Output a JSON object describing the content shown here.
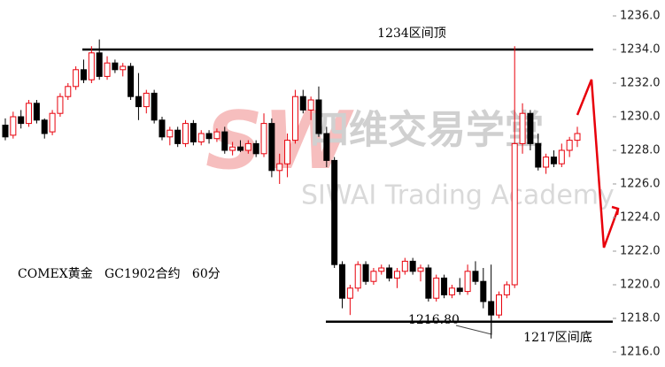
{
  "chart_data": {
    "type": "candlestick",
    "label": "COMEX黄金   GC1902合约   60分",
    "watermark": {
      "logo": "SW",
      "title": "四维交易学堂",
      "subtitle": "SIWAI Trading Academy"
    },
    "up_color": "#e8000b",
    "down_color": "#000000",
    "ylim": [
      1216,
      1236
    ],
    "yticks": [
      {
        "value": 1216,
        "label": "1216.0"
      },
      {
        "value": 1218,
        "label": "1218.0"
      },
      {
        "value": 1220,
        "label": "1220.0"
      },
      {
        "value": 1222,
        "label": "1222.0"
      },
      {
        "value": 1224,
        "label": "1224.0"
      },
      {
        "value": 1226,
        "label": "1226.0"
      },
      {
        "value": 1228,
        "label": "1228.0"
      },
      {
        "value": 1230,
        "label": "1230.0"
      },
      {
        "value": 1232,
        "label": "1232.0"
      },
      {
        "value": 1234,
        "label": "1234.0"
      },
      {
        "value": 1236,
        "label": "1236.0"
      }
    ],
    "levels": [
      {
        "label": "1234区间顶",
        "value": 1234
      },
      {
        "label": "1217区间底",
        "value": 1217.8
      }
    ],
    "low_annotation": {
      "label": "1216.80",
      "value": 1216.8
    },
    "open": [
      1229.5,
      1228.9,
      1230.0,
      1229.6,
      1230.8,
      1229.8,
      1229.1,
      1230.2,
      1231.2,
      1231.8,
      1232.8,
      1232.2,
      1233.8,
      1232.4,
      1233.2,
      1232.8,
      1233.0,
      1231.2,
      1230.6,
      1231.4,
      1229.8,
      1228.8,
      1229.2,
      1228.4,
      1229.6,
      1228.5,
      1229.0,
      1228.7,
      1229.1,
      1228.0,
      1228.2,
      1228.0,
      1228.4,
      1227.8,
      1229.6,
      1226.8,
      1227.2,
      1228.6,
      1231.2,
      1230.4,
      1231.0,
      1229.0,
      1227.4,
      1221.2,
      1219.2,
      1219.8,
      1221.2,
      1220.2,
      1220.8,
      1221.0,
      1220.4,
      1220.8,
      1221.4,
      1220.8,
      1221.0,
      1219.2,
      1220.4,
      1219.4,
      1219.8,
      1219.6,
      1220.8,
      1220.2,
      1219.0,
      1218.2,
      1219.4,
      1220.0,
      1228.4,
      1230.2,
      1228.4,
      1227.0,
      1227.6,
      1227.2,
      1228.0,
      1228.6
    ],
    "high": [
      1229.9,
      1230.3,
      1230.4,
      1231.0,
      1231.0,
      1229.9,
      1230.4,
      1231.4,
      1232.0,
      1233.0,
      1233.4,
      1234.2,
      1234.6,
      1233.6,
      1233.4,
      1233.2,
      1233.2,
      1232.6,
      1231.6,
      1231.6,
      1230.0,
      1229.4,
      1229.4,
      1229.8,
      1229.8,
      1229.2,
      1229.2,
      1229.3,
      1229.4,
      1228.5,
      1228.6,
      1228.6,
      1228.6,
      1230.2,
      1229.9,
      1227.8,
      1229.0,
      1231.6,
      1231.6,
      1231.2,
      1231.8,
      1229.4,
      1227.6,
      1221.4,
      1220.0,
      1221.4,
      1221.4,
      1221.0,
      1221.2,
      1221.2,
      1221.0,
      1221.6,
      1221.6,
      1221.2,
      1221.2,
      1220.6,
      1220.6,
      1220.0,
      1220.4,
      1221.2,
      1221.4,
      1221.0,
      1221.2,
      1219.6,
      1220.2,
      1234.2,
      1230.8,
      1230.4,
      1229.0,
      1227.8,
      1228.0,
      1228.4,
      1228.8,
      1229.4
    ],
    "low": [
      1228.6,
      1228.7,
      1229.3,
      1229.4,
      1229.6,
      1228.7,
      1228.9,
      1230.0,
      1231.0,
      1231.6,
      1232.0,
      1232.0,
      1232.2,
      1232.2,
      1232.6,
      1232.4,
      1231.0,
      1229.8,
      1230.2,
      1229.6,
      1228.6,
      1228.3,
      1228.2,
      1228.2,
      1228.3,
      1228.3,
      1228.4,
      1228.5,
      1227.8,
      1227.7,
      1227.9,
      1227.8,
      1227.6,
      1227.6,
      1226.4,
      1226.0,
      1226.4,
      1228.4,
      1230.2,
      1229.8,
      1228.8,
      1227.0,
      1221.0,
      1218.6,
      1218.2,
      1219.6,
      1220.0,
      1220.0,
      1220.6,
      1220.2,
      1219.8,
      1220.6,
      1220.6,
      1220.2,
      1219.0,
      1219.0,
      1219.2,
      1219.2,
      1219.4,
      1219.4,
      1220.0,
      1218.6,
      1216.8,
      1218.0,
      1219.2,
      1219.8,
      1227.8,
      1228.0,
      1226.8,
      1226.6,
      1227.0,
      1227.0,
      1227.6,
      1228.2
    ],
    "close": [
      1228.8,
      1230.0,
      1229.6,
      1230.8,
      1229.8,
      1229.0,
      1230.2,
      1231.2,
      1231.8,
      1232.8,
      1232.2,
      1233.8,
      1232.4,
      1233.2,
      1232.8,
      1233.0,
      1231.2,
      1230.6,
      1231.4,
      1229.8,
      1228.8,
      1229.2,
      1228.4,
      1229.6,
      1228.5,
      1229.0,
      1228.7,
      1229.1,
      1228.0,
      1228.2,
      1228.0,
      1228.4,
      1227.8,
      1229.6,
      1226.8,
      1227.2,
      1228.6,
      1231.2,
      1230.4,
      1231.0,
      1229.0,
      1227.4,
      1221.2,
      1219.2,
      1219.8,
      1221.2,
      1220.2,
      1220.8,
      1221.0,
      1220.4,
      1220.8,
      1221.4,
      1220.8,
      1221.0,
      1219.2,
      1220.4,
      1219.4,
      1219.8,
      1219.6,
      1220.8,
      1220.2,
      1219.0,
      1218.2,
      1219.4,
      1220.0,
      1228.4,
      1230.2,
      1228.4,
      1227.0,
      1227.6,
      1227.2,
      1228.0,
      1228.6,
      1229.0
    ]
  }
}
